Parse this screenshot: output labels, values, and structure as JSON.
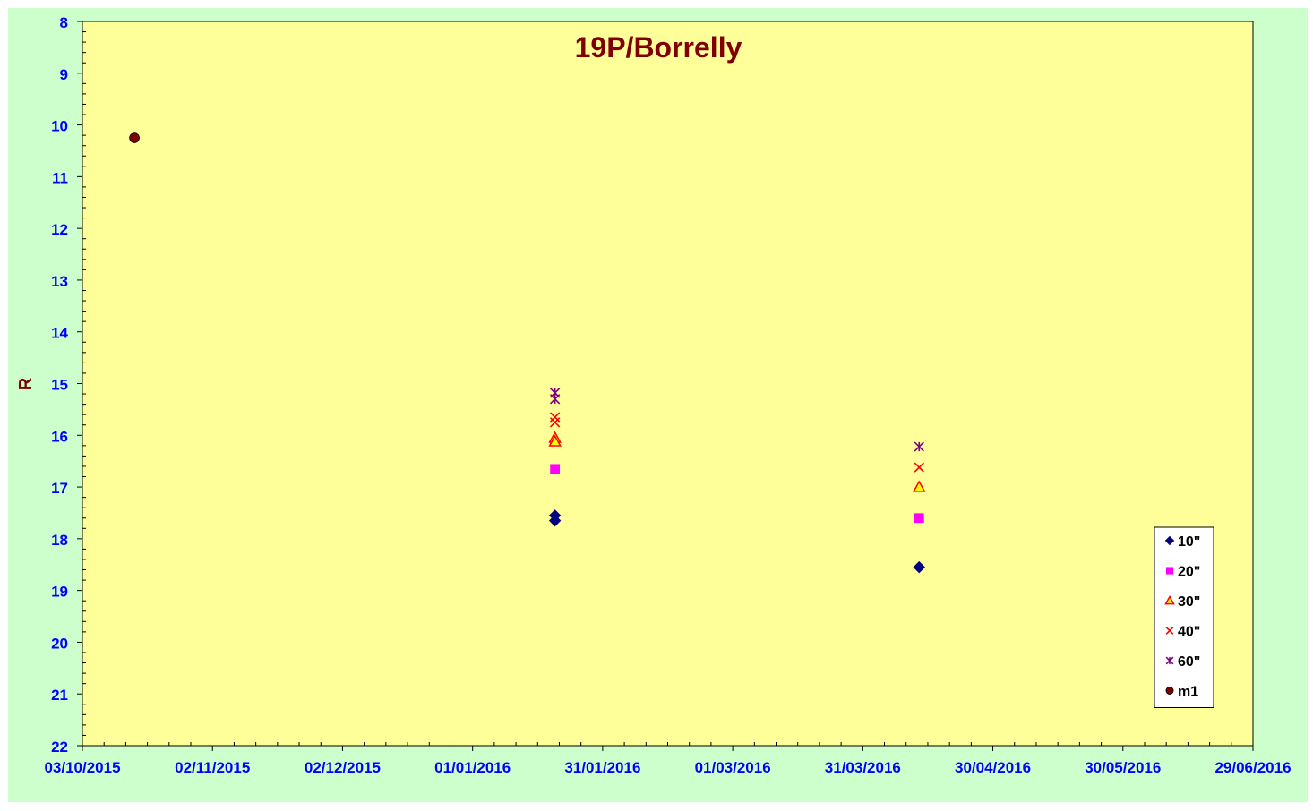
{
  "chart_data": {
    "type": "scatter",
    "title": "19P/Borrelly",
    "xlabel": "",
    "ylabel": "R",
    "y_inverted": true,
    "ylim": [
      8,
      22
    ],
    "y_ticks": [
      8,
      9,
      10,
      11,
      12,
      13,
      14,
      15,
      16,
      17,
      18,
      19,
      20,
      21,
      22
    ],
    "xlim": [
      "2015-10-03",
      "2016-06-29"
    ],
    "x_tick_labels": [
      "03/10/2015",
      "02/11/2015",
      "02/12/2015",
      "01/01/2016",
      "31/01/2016",
      "01/03/2016",
      "31/03/2016",
      "30/04/2016",
      "30/05/2016",
      "29/06/2016"
    ],
    "grid": false,
    "legend_position": "bottom-right",
    "colors": {
      "outer_background": "#ccffcc",
      "plot_background": "#ffff99",
      "title": "#800000",
      "ylabel": "#800000",
      "tick_labels": "#0000ff"
    },
    "series": [
      {
        "name": "10\"",
        "marker": "diamond",
        "color": "#000080",
        "points": [
          {
            "x": "2016-01-20",
            "y": 17.55
          },
          {
            "x": "2016-01-20",
            "y": 17.65
          },
          {
            "x": "2016-04-13",
            "y": 18.55
          }
        ]
      },
      {
        "name": "20\"",
        "marker": "square",
        "color": "#ff00ff",
        "points": [
          {
            "x": "2016-01-20",
            "y": 16.65
          },
          {
            "x": "2016-04-13",
            "y": 17.6
          }
        ]
      },
      {
        "name": "30\"",
        "marker": "triangle",
        "color": "#ff0000",
        "fill": "#ffff00",
        "points": [
          {
            "x": "2016-01-20",
            "y": 16.05
          },
          {
            "x": "2016-01-20",
            "y": 16.12
          },
          {
            "x": "2016-04-13",
            "y": 17.0
          }
        ]
      },
      {
        "name": "40\"",
        "marker": "x",
        "color": "#ff0000",
        "points": [
          {
            "x": "2016-01-20",
            "y": 15.65
          },
          {
            "x": "2016-01-20",
            "y": 15.75
          },
          {
            "x": "2016-04-13",
            "y": 16.62
          }
        ]
      },
      {
        "name": "60\"",
        "marker": "star",
        "color": "#800080",
        "points": [
          {
            "x": "2016-01-20",
            "y": 15.18
          },
          {
            "x": "2016-01-20",
            "y": 15.3
          },
          {
            "x": "2016-04-13",
            "y": 16.22
          }
        ]
      },
      {
        "name": "m1",
        "marker": "circle",
        "color": "#800000",
        "points": [
          {
            "x": "2015-10-15",
            "y": 10.25
          }
        ]
      }
    ]
  }
}
